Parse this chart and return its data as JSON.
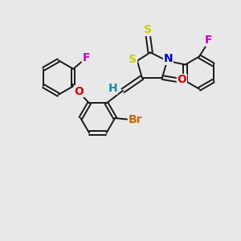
{
  "bg_color": "#e8e8e8",
  "bond_color": "#1a1a1a",
  "colors": {
    "S": "#cccc00",
    "N": "#0000cc",
    "O": "#dd0000",
    "F": "#cc00cc",
    "Br": "#cc6600",
    "H": "#009999",
    "C": "#1a1a1a"
  },
  "lw": 1.4,
  "fs": 10
}
